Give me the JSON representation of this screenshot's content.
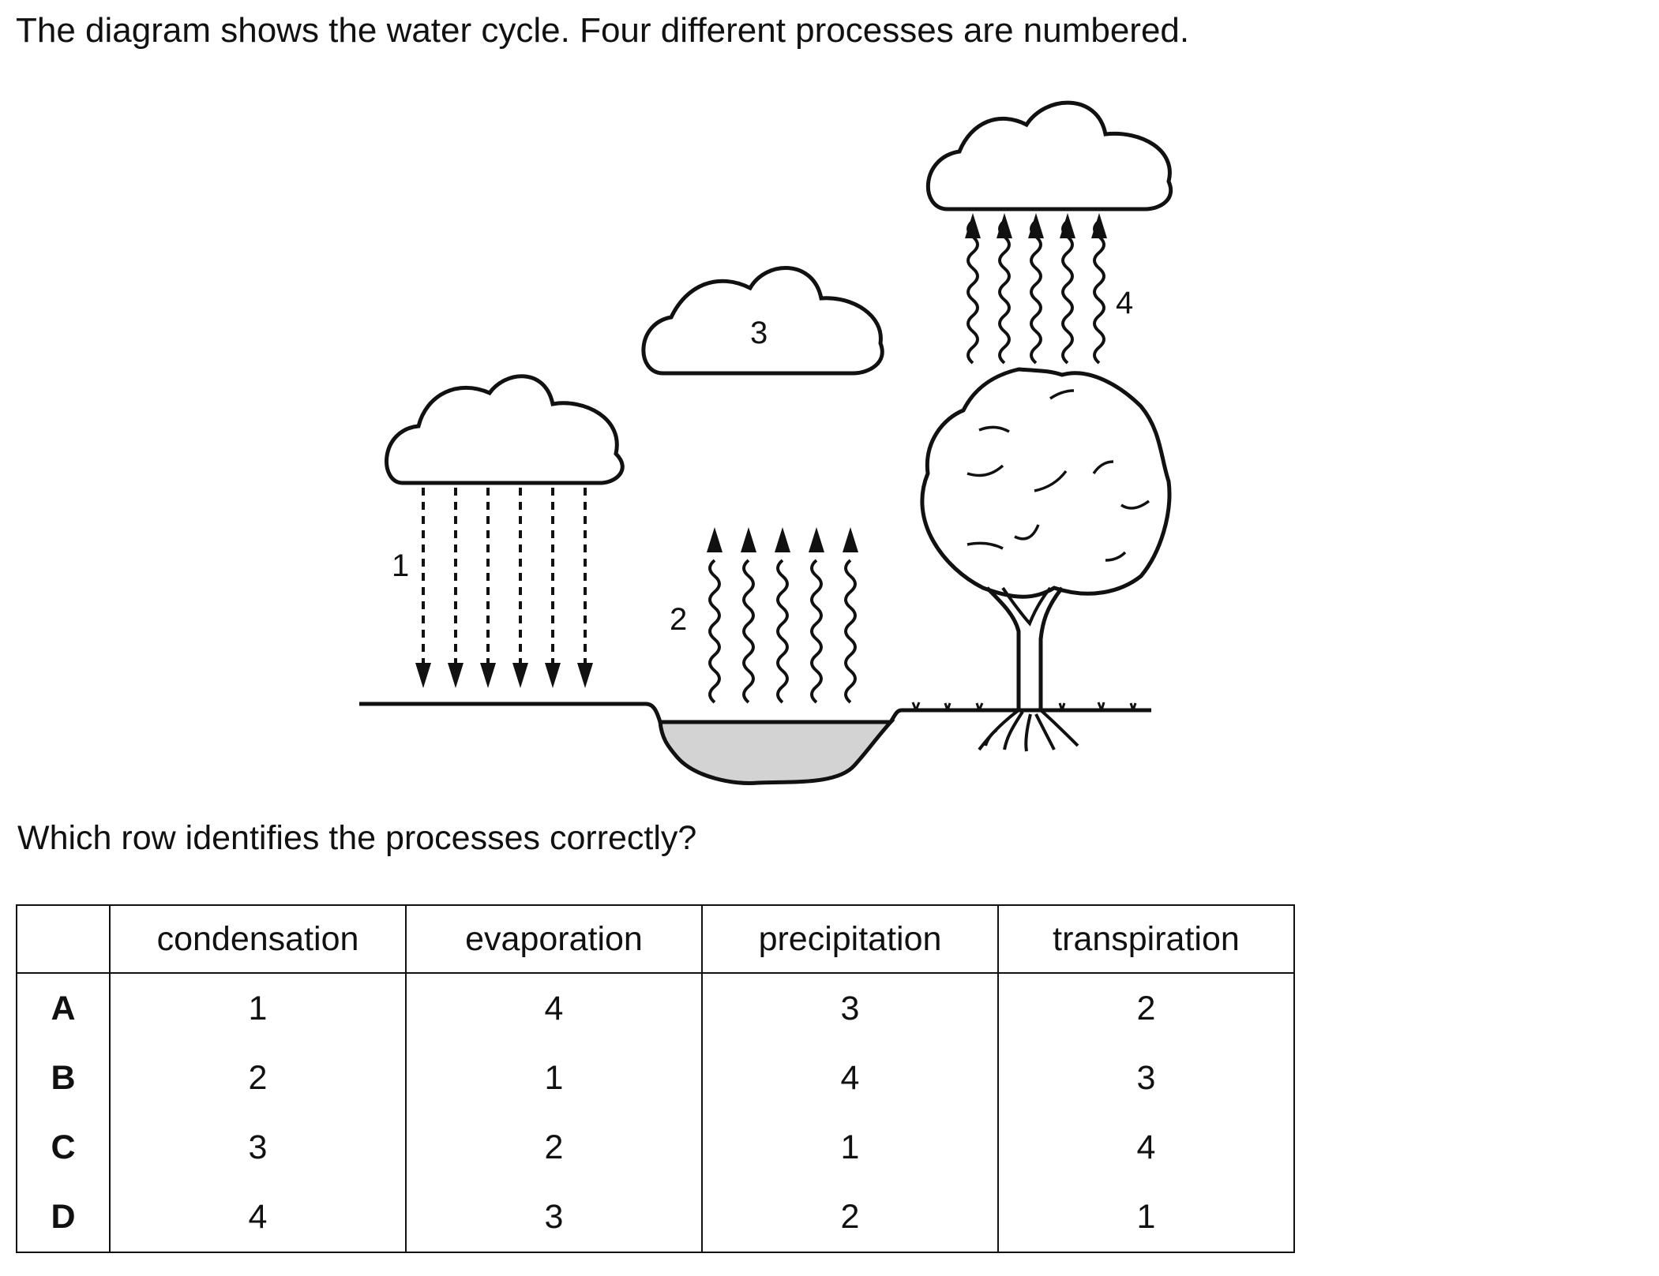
{
  "intro": "The diagram shows the water cycle. Four different processes are numbered.",
  "diagram": {
    "labels": {
      "p1": "1",
      "p2": "2",
      "p3": "3",
      "p4": "4"
    }
  },
  "question": "Which row identifies the processes correctly?",
  "table": {
    "headers": [
      "",
      "condensation",
      "evaporation",
      "precipitation",
      "transpiration"
    ],
    "rows": [
      {
        "letter": "A",
        "values": [
          "1",
          "4",
          "3",
          "2"
        ]
      },
      {
        "letter": "B",
        "values": [
          "2",
          "1",
          "4",
          "3"
        ]
      },
      {
        "letter": "C",
        "values": [
          "3",
          "2",
          "1",
          "4"
        ]
      },
      {
        "letter": "D",
        "values": [
          "4",
          "3",
          "2",
          "1"
        ]
      }
    ]
  }
}
